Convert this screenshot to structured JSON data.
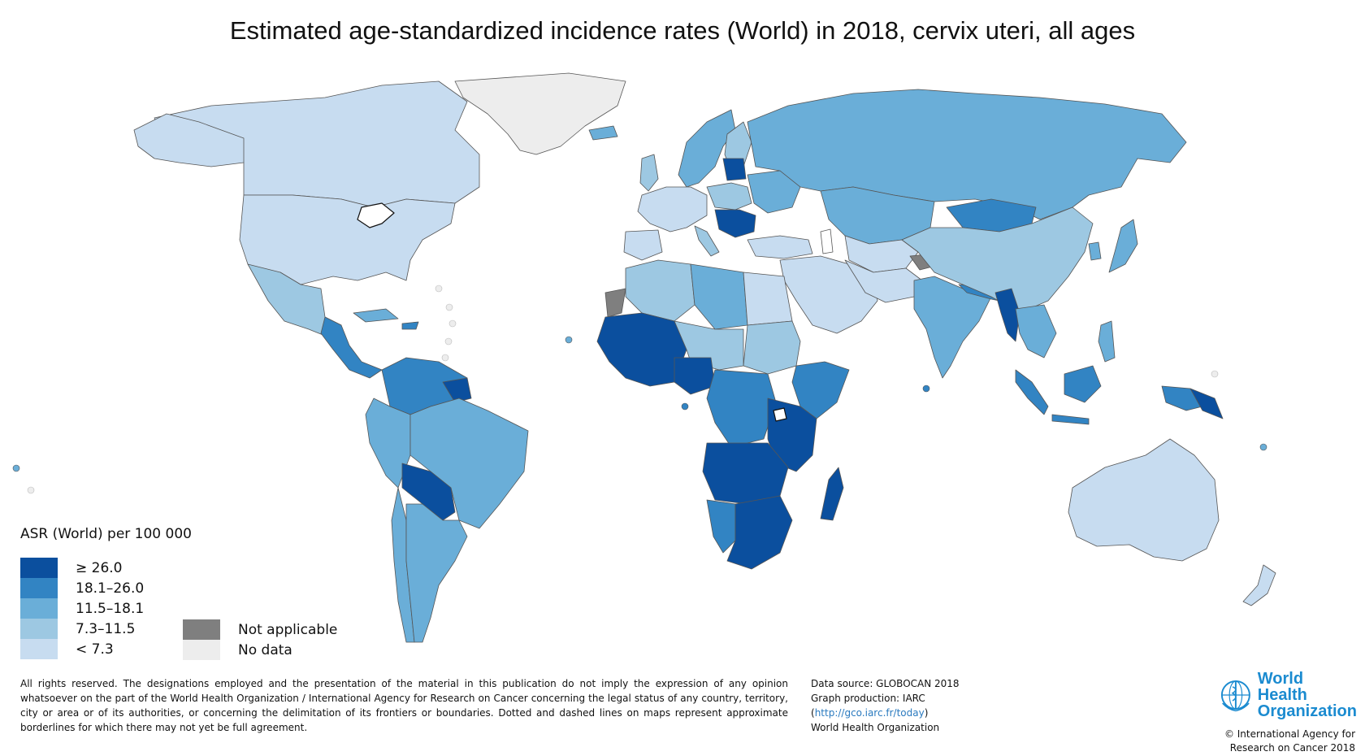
{
  "title": "Estimated age-standardized incidence rates (World) in 2018, cervix uteri, all ages",
  "legend": {
    "title": "ASR (World) per 100 000",
    "classes": [
      {
        "label": "≥ 26.0",
        "color": "#0b4f9e"
      },
      {
        "label": "18.1–26.0",
        "color": "#3284c3"
      },
      {
        "label": "11.5–18.1",
        "color": "#6aaed8"
      },
      {
        "label": "7.3–11.5",
        "color": "#9dc8e2"
      },
      {
        "label": "< 7.3",
        "color": "#c7dcf0"
      }
    ],
    "extra": [
      {
        "label": "Not applicable",
        "color": "#7f7f7f"
      },
      {
        "label": "No data",
        "color": "#ededed"
      }
    ]
  },
  "disclaimer": "All rights reserved. The designations employed and the presentation of the material in this publication do not imply the expression of any opinion whatsoever on the part of the World Health Organization / International Agency for Research on Cancer concerning the legal status of any country, territory, city or area or of its authorities, or concerning the delimitation of its frontiers or boundaries. Dotted and dashed lines on maps represent approximate borderlines for which there may not yet be full agreement.",
  "source": {
    "line1": "Data source: GLOBOCAN 2018",
    "line2": "Graph production: IARC",
    "link_open": "(",
    "link": "http://gco.iarc.fr/today",
    "link_close": ")",
    "line4": "World Health Organization"
  },
  "who": {
    "name_line1": "World Health",
    "name_line2": "Organization",
    "copyright_line1": "© International Agency for",
    "copyright_line2": "Research on Cancer 2018"
  }
}
